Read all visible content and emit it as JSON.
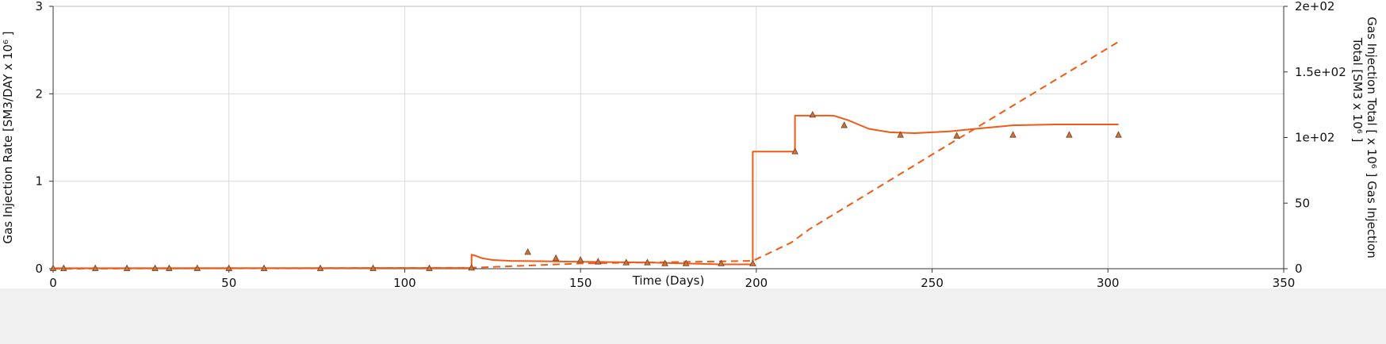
{
  "colors": {
    "series": "#f05a14",
    "marker": "#7a3a1a",
    "grid": "#d9d9d9",
    "axis": "#333333",
    "footer": "#f0f0f0"
  },
  "chart_data": {
    "type": "line",
    "xlabel": "Time (Days)",
    "ylabel_left": "Gas Injection Rate [SM3/DAY x 10⁶ ]",
    "ylabel_right_line1": "Gas Injection Total [ x 10⁶ ] Gas Injection",
    "ylabel_right_line2": "Total [SM3 x 10⁶ ]",
    "xlim": [
      0,
      350
    ],
    "ylim_left": [
      0,
      3
    ],
    "ylim_right": [
      0,
      200
    ],
    "x_ticks": [
      "0",
      "50",
      "100",
      "150",
      "200",
      "250",
      "300",
      "350"
    ],
    "y_left_ticks": [
      "0",
      "1",
      "2",
      "3"
    ],
    "y_right_ticks": [
      "0",
      "50",
      "1e+02",
      "1.5e+02",
      "2e+02"
    ],
    "grid": true,
    "series": [
      {
        "axis": "left",
        "style": "solid",
        "x": [
          0,
          119,
          119,
          120,
          122,
          125,
          130,
          140,
          150,
          160,
          170,
          180,
          190,
          199,
          199,
          211,
          211,
          222,
          226,
          232,
          238,
          245,
          255,
          265,
          273,
          285,
          303
        ],
        "y": [
          0.005,
          0.008,
          0.16,
          0.15,
          0.12,
          0.1,
          0.09,
          0.085,
          0.08,
          0.075,
          0.07,
          0.06,
          0.05,
          0.05,
          1.34,
          1.34,
          1.75,
          1.75,
          1.7,
          1.6,
          1.56,
          1.55,
          1.57,
          1.61,
          1.64,
          1.65,
          1.65
        ]
      },
      {
        "axis": "right",
        "style": "dashed",
        "x": [
          0,
          60,
          100,
          119,
          150,
          199,
          210,
          215,
          250,
          303
        ],
        "y": [
          0,
          0.3,
          0.6,
          0.7,
          4,
          6,
          20,
          30,
          87,
          173
        ]
      },
      {
        "axis": "left",
        "style": "markers",
        "x": [
          0,
          3,
          12,
          21,
          29,
          33,
          41,
          50,
          60,
          76,
          91,
          107,
          119,
          135,
          143,
          150,
          155,
          163,
          169,
          174,
          180,
          190,
          199,
          211,
          216,
          225,
          241,
          257,
          273,
          289,
          303
        ],
        "y": [
          0.005,
          0.005,
          0.005,
          0.005,
          0.005,
          0.005,
          0.005,
          0.005,
          0.005,
          0.005,
          0.005,
          0.005,
          0.01,
          0.19,
          0.12,
          0.1,
          0.08,
          0.07,
          0.07,
          0.06,
          0.06,
          0.06,
          0.06,
          1.34,
          1.76,
          1.64,
          1.53,
          1.52,
          1.53,
          1.53,
          1.53
        ]
      }
    ]
  }
}
